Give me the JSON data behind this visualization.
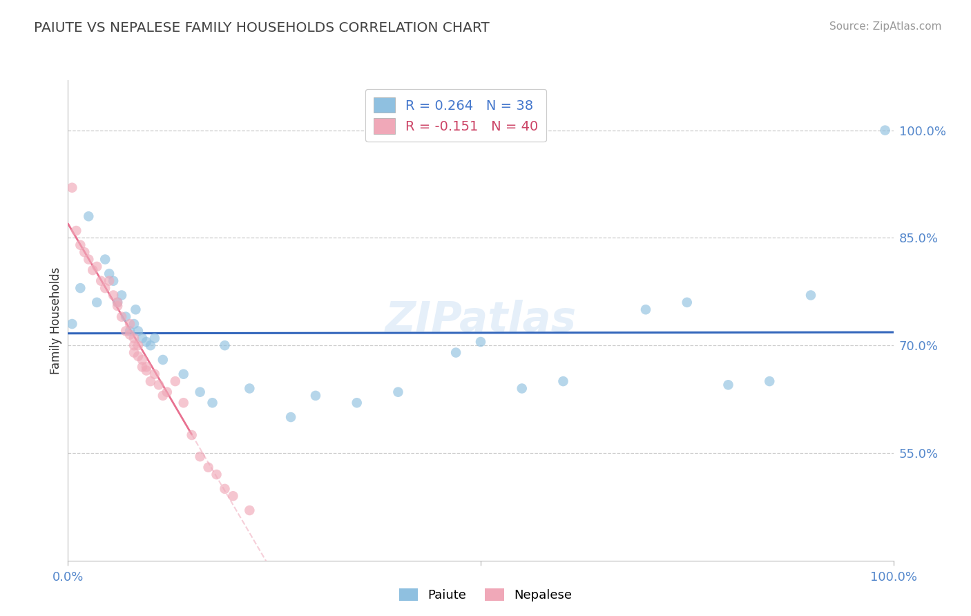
{
  "title": "PAIUTE VS NEPALESE FAMILY HOUSEHOLDS CORRELATION CHART",
  "source": "Source: ZipAtlas.com",
  "ylabel": "Family Households",
  "xmin": 0.0,
  "xmax": 100.0,
  "ymin": 40.0,
  "ymax": 107.0,
  "paiute_R": 0.264,
  "paiute_N": 38,
  "nepalese_R": -0.151,
  "nepalese_N": 40,
  "paiute_color": "#8fc0e0",
  "nepalese_color": "#f0a8b8",
  "trendline_paiute_color": "#3366bb",
  "trendline_nepalese_solid_color": "#e87090",
  "trendline_nepalese_dash_color": "#f0b0c0",
  "watermark": "ZIPatlas",
  "right_yticks": [
    55.0,
    70.0,
    85.0,
    100.0
  ],
  "right_ytick_labels": [
    "55.0%",
    "70.0%",
    "85.0%",
    "100.0%"
  ],
  "paiute_x": [
    0.5,
    1.5,
    2.5,
    3.5,
    4.5,
    5.0,
    5.5,
    6.0,
    6.5,
    7.0,
    7.5,
    8.0,
    8.2,
    8.5,
    9.0,
    9.5,
    10.0,
    10.5,
    11.5,
    14.0,
    16.0,
    17.5,
    19.0,
    22.0,
    27.0,
    30.0,
    35.0,
    40.0,
    47.0,
    50.0,
    55.0,
    60.0,
    70.0,
    75.0,
    80.0,
    85.0,
    90.0,
    99.0
  ],
  "paiute_y": [
    73.0,
    78.0,
    88.0,
    76.0,
    82.0,
    80.0,
    79.0,
    76.0,
    77.0,
    74.0,
    72.0,
    73.0,
    75.0,
    72.0,
    71.0,
    70.5,
    70.0,
    71.0,
    68.0,
    66.0,
    63.5,
    62.0,
    70.0,
    64.0,
    60.0,
    63.0,
    62.0,
    63.5,
    69.0,
    70.5,
    64.0,
    65.0,
    75.0,
    76.0,
    64.5,
    65.0,
    77.0,
    100.0
  ],
  "nepalese_x": [
    0.5,
    1.0,
    1.5,
    2.0,
    2.5,
    3.0,
    3.5,
    4.0,
    4.5,
    5.0,
    5.5,
    6.0,
    6.0,
    6.5,
    7.0,
    7.5,
    7.5,
    8.0,
    8.0,
    8.0,
    8.5,
    8.5,
    9.0,
    9.0,
    9.5,
    9.5,
    10.0,
    10.5,
    11.0,
    11.5,
    12.0,
    13.0,
    14.0,
    15.0,
    16.0,
    17.0,
    18.0,
    19.0,
    20.0,
    22.0
  ],
  "nepalese_y": [
    92.0,
    86.0,
    84.0,
    83.0,
    82.0,
    80.5,
    81.0,
    79.0,
    78.0,
    79.0,
    77.0,
    76.0,
    75.5,
    74.0,
    72.0,
    73.0,
    71.5,
    71.0,
    70.0,
    69.0,
    68.5,
    70.0,
    68.0,
    67.0,
    67.0,
    66.5,
    65.0,
    66.0,
    64.5,
    63.0,
    63.5,
    65.0,
    62.0,
    57.5,
    54.5,
    53.0,
    52.0,
    50.0,
    49.0,
    47.0
  ]
}
